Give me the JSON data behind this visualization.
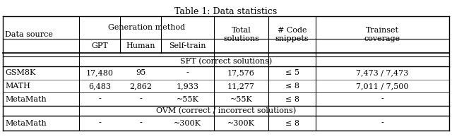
{
  "title": "Table 1: Data statistics",
  "figsize": [
    6.4,
    1.97
  ],
  "dpi": 100,
  "bg_color": "#ffffff",
  "font_family": "DejaVu Serif",
  "section_sft": "SFT (correct solutions)",
  "section_ovm": "OVM (correct / incorrect solutions)",
  "data_rows_sft": [
    [
      "GSM8K",
      "17,480",
      "95",
      "-",
      "17,576",
      "≤ 5",
      "7,473 / 7,473"
    ],
    [
      "MATH",
      "6,483",
      "2,862",
      "1,933",
      "11,277",
      "≤ 8",
      "7,011 / 7,500"
    ],
    [
      "MetaMath",
      "-",
      "-",
      "~55K",
      "~55K",
      "≤ 8",
      "-"
    ]
  ],
  "data_rows_ovm": [
    [
      "MetaMath",
      "-",
      "-",
      "~300K",
      "~300K",
      "≤ 8",
      "-"
    ]
  ],
  "text_color": "#000000",
  "line_color": "#000000",
  "font_size": 8.0,
  "title_font_size": 9.0
}
